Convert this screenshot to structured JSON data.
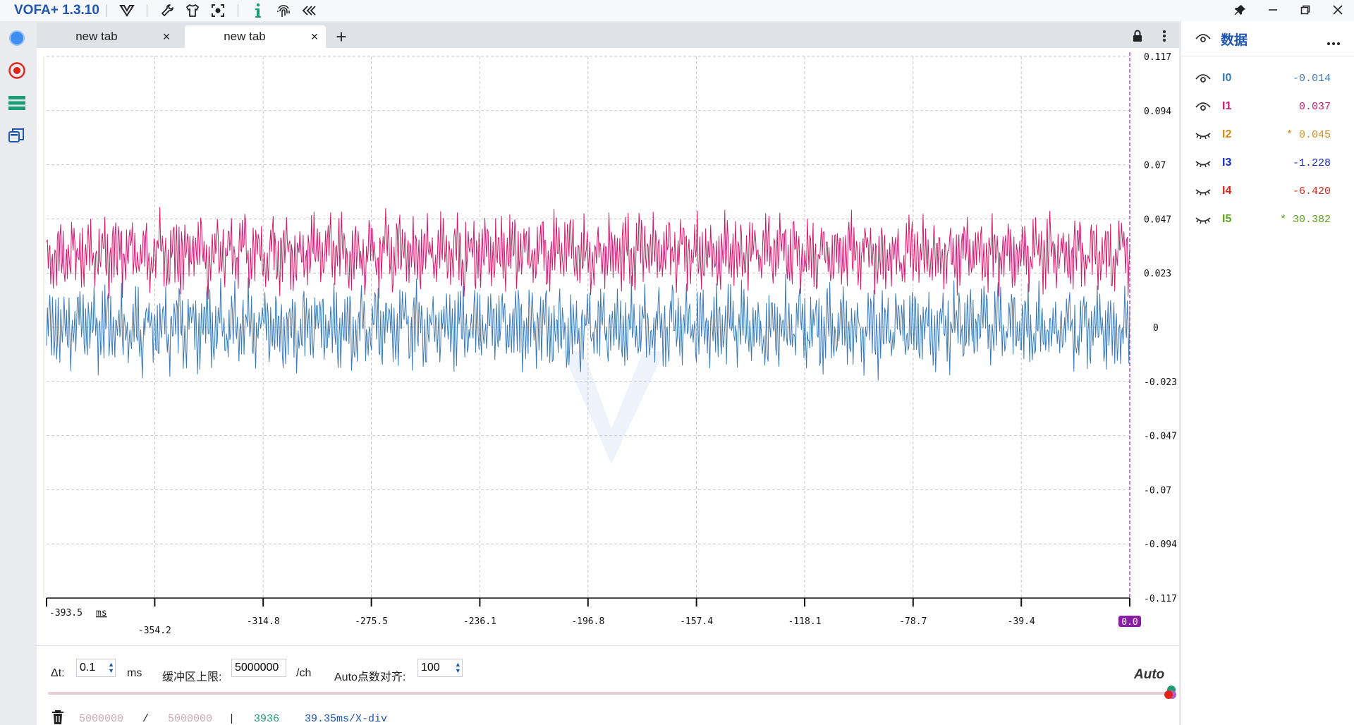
{
  "app": {
    "title": "VOFA+ 1.3.10"
  },
  "tabs": [
    {
      "label": "new tab",
      "active": false
    },
    {
      "label": "new tab",
      "active": true
    }
  ],
  "plot": {
    "y_ticks": [
      "0.117",
      "0.094",
      "0.07",
      "0.047",
      "0.023",
      "0",
      "-0.023",
      "-0.047",
      "-0.07",
      "-0.094",
      "-0.117"
    ],
    "x_ticks": [
      "-393.5",
      "-354.2",
      "-314.8",
      "-275.5",
      "-236.1",
      "-196.8",
      "-157.4",
      "-118.1",
      "-78.7",
      "-39.4",
      "0.0"
    ],
    "x_unit": "ms"
  },
  "chart_data": {
    "type": "line",
    "xlim": [
      -393.5,
      0.0
    ],
    "ylim": [
      -0.117,
      0.117
    ],
    "grid": true,
    "series": [
      {
        "name": "I0",
        "color": "#3a7ab8",
        "center": 0.0,
        "amplitude": 0.018
      },
      {
        "name": "I1",
        "color": "#d6186a",
        "center": 0.032,
        "amplitude": 0.016
      }
    ]
  },
  "controls": {
    "dt_label": "Δt:",
    "dt_value": "0.1",
    "dt_unit": "ms",
    "buffer_label": "缓冲区上限:",
    "buffer_value": "5000000",
    "buffer_unit": "/ch",
    "align_label": "Auto点数对齐:",
    "align_value": "100",
    "auto_label": "Auto"
  },
  "stats": {
    "count_a": "5000000",
    "slash": "/",
    "count_b": "5000000",
    "bar": "|",
    "points": "3936",
    "rate": "39.35ms/X-div"
  },
  "panel": {
    "title": "数据",
    "channels": [
      {
        "name": "I0",
        "value": "-0.014",
        "color": "#3a7ab8",
        "visible": true
      },
      {
        "name": "I1",
        "value": "0.037",
        "color": "#d6186a",
        "visible": true
      },
      {
        "name": "I2",
        "value": "* 0.045",
        "color": "#d48a14",
        "visible": false
      },
      {
        "name": "I3",
        "value": "-1.228",
        "color": "#1a2bd0",
        "visible": false
      },
      {
        "name": "I4",
        "value": "-6.420",
        "color": "#e0241a",
        "visible": false
      },
      {
        "name": "I5",
        "value": "* 30.382",
        "color": "#5aa41a",
        "visible": false
      }
    ]
  }
}
